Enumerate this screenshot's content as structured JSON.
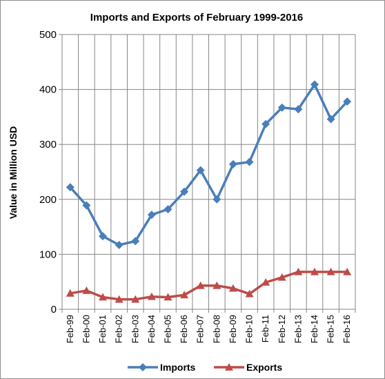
{
  "chart_data": {
    "type": "line",
    "title": "Imports and Exports of February 1999-2016",
    "xlabel": "",
    "ylabel": "Value in  Million  USD",
    "ylim": [
      0,
      500
    ],
    "yticks": [
      "0",
      "100",
      "200",
      "300",
      "400",
      "500"
    ],
    "grid": "vertical lines at categories, horizontal lines at y ticks",
    "legend": "bottom",
    "categories": [
      "Feb-99",
      "Feb-00",
      "Feb-01",
      "Feb-02",
      "Feb-03",
      "Feb-04",
      "Feb-05",
      "Feb-06",
      "Feb-07",
      "Feb-08",
      "Feb-09",
      "Feb-10",
      "Feb-11",
      "Feb-12",
      "Feb-13",
      "Feb-14",
      "Feb-15",
      "Feb-16"
    ],
    "series": [
      {
        "name": "Imports",
        "color": "#4a7ebb",
        "marker": "diamond",
        "values": [
          222,
          189,
          133,
          117,
          124,
          172,
          182,
          214,
          253,
          200,
          264,
          268,
          337,
          367,
          364,
          409,
          346,
          378
        ]
      },
      {
        "name": "Exports",
        "color": "#be4b48",
        "marker": "triangle",
        "values": [
          29,
          34,
          22,
          18,
          18,
          23,
          22,
          26,
          43,
          43,
          38,
          28,
          49,
          58,
          68,
          68,
          68,
          68
        ]
      }
    ]
  }
}
